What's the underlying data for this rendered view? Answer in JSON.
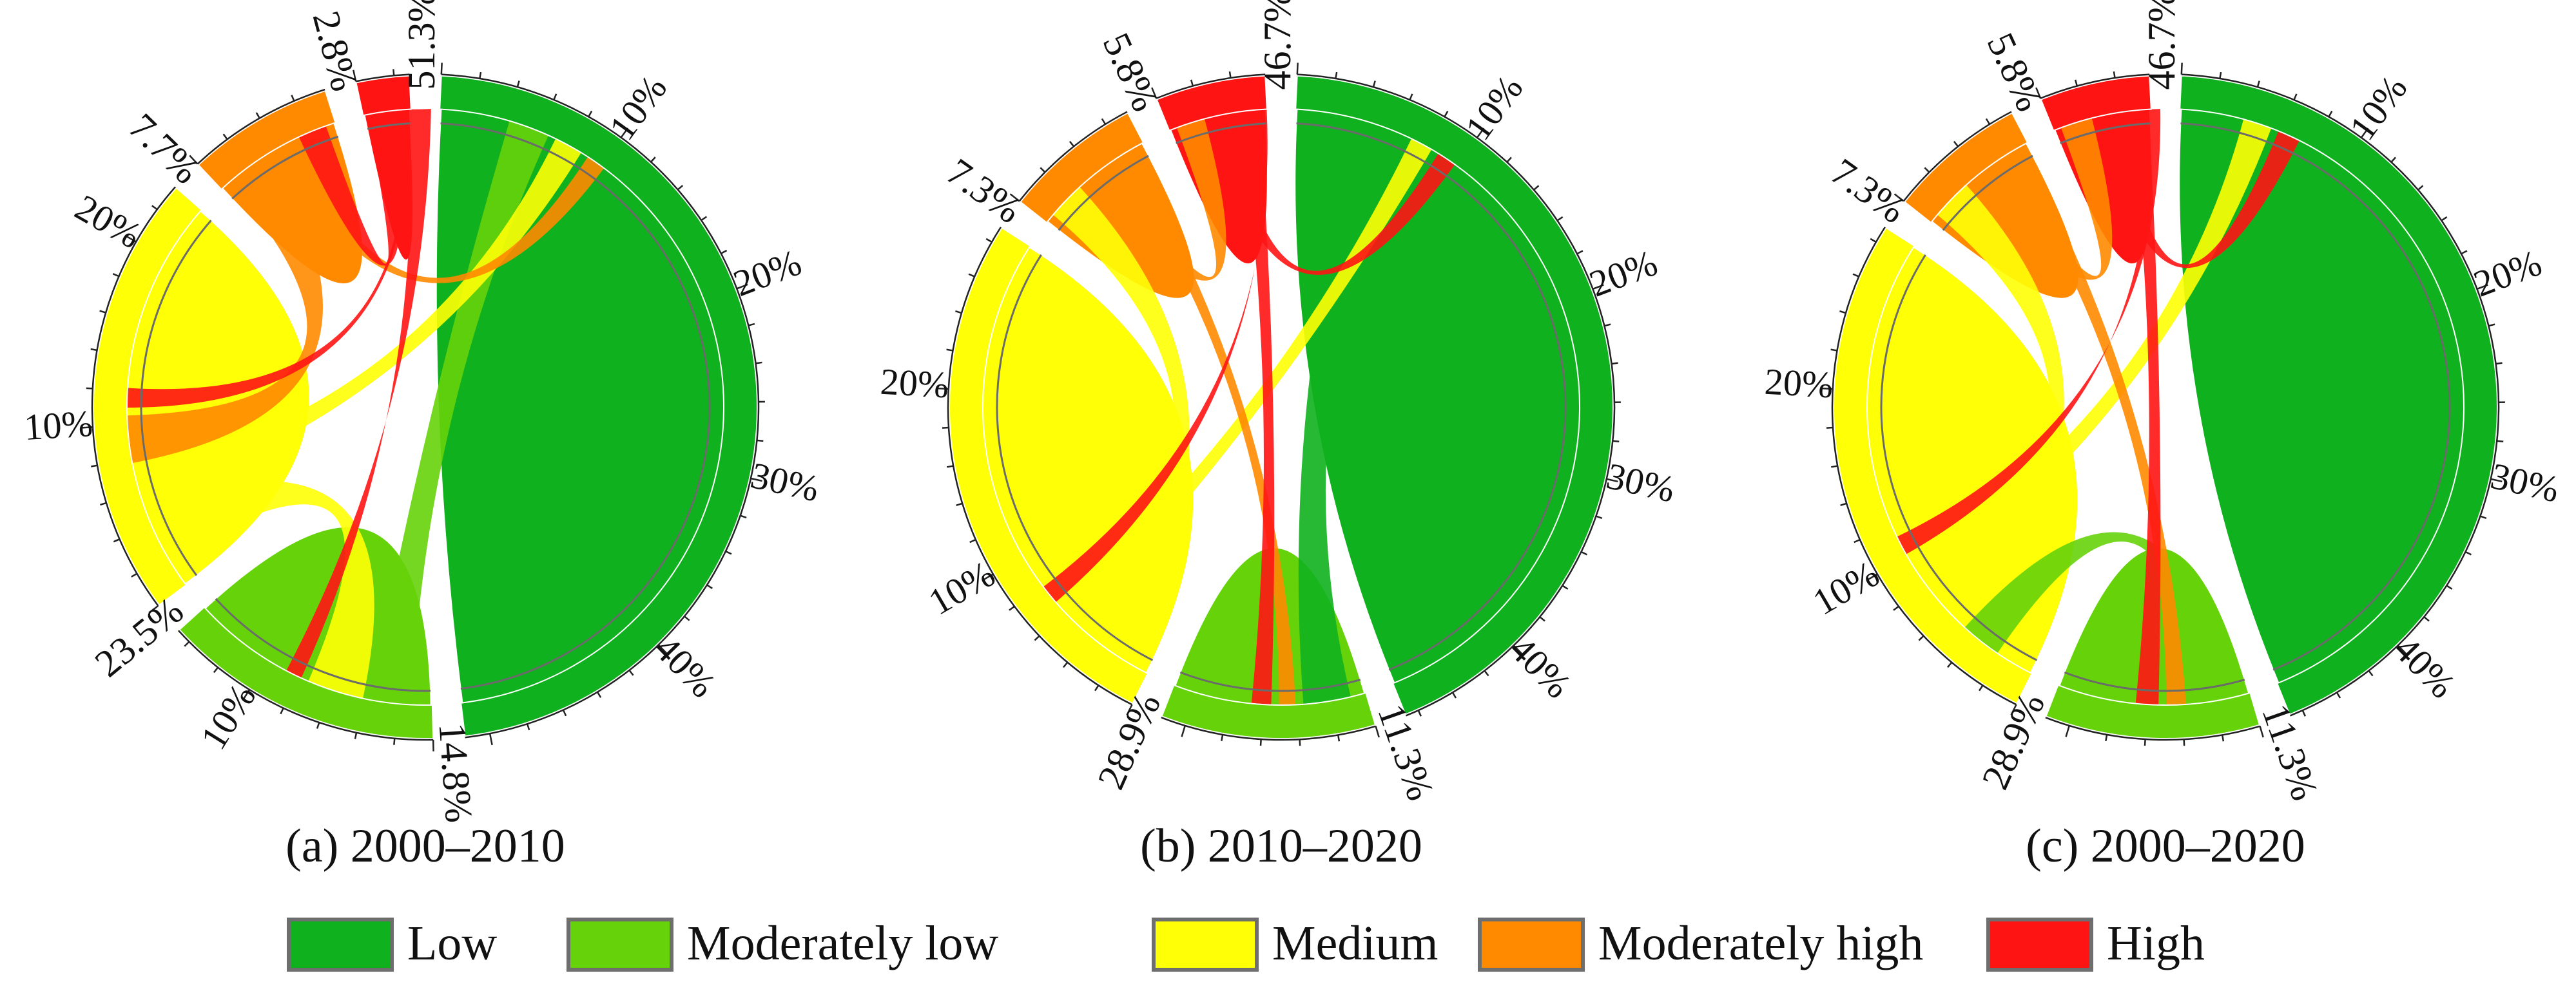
{
  "colors": {
    "Low": "#10b11e",
    "Moderately low": "#66d30a",
    "Medium": "#ffff05",
    "Moderately high": "#ff8a00",
    "High": "#ff1414"
  },
  "legend": {
    "items": [
      {
        "label": "Low",
        "color": "#10b11e"
      },
      {
        "label": "Moderately low",
        "color": "#66d30a"
      },
      {
        "label": "Medium",
        "color": "#ffff05"
      },
      {
        "label": "Moderately high",
        "color": "#ff8a00"
      },
      {
        "label": "High",
        "color": "#ff1414"
      }
    ]
  },
  "chart_data": [
    {
      "type": "chord",
      "title": "(a) 2000–2010",
      "categories": [
        "Low",
        "Moderately low",
        "Medium",
        "Moderately high",
        "High"
      ],
      "shares_percent": [
        51.3,
        14.8,
        23.5,
        7.7,
        2.8
      ],
      "share_labels": [
        "51.3%",
        "14.8%",
        "23.5%",
        "7.7%",
        "2.8%"
      ],
      "axis_tick_labels": {
        "Low": [
          "10%",
          "20%",
          "30%",
          "40%"
        ],
        "Moderately low": [
          "10%"
        ],
        "Medium": [
          "10%",
          "20%"
        ],
        "Moderately high": [],
        "High": []
      },
      "flows": [
        {
          "from": "Moderately low",
          "to": "Low",
          "value": 1.0
        },
        {
          "from": "Medium",
          "to": "Moderately low",
          "value": 1.5
        },
        {
          "from": "Medium",
          "to": "Low",
          "value": 0.6
        },
        {
          "from": "Moderately high",
          "to": "Medium",
          "value": 1.2
        },
        {
          "from": "Moderately high",
          "to": "Low",
          "value": 0.3
        },
        {
          "from": "High",
          "to": "Moderately high",
          "value": 0.6
        },
        {
          "from": "High",
          "to": "Medium",
          "value": 0.3
        },
        {
          "from": "High",
          "to": "Moderately low",
          "value": 0.2
        }
      ]
    },
    {
      "type": "chord",
      "title": "(b) 2010–2020",
      "categories": [
        "Low",
        "Moderately low",
        "Medium",
        "Moderately high",
        "High"
      ],
      "shares_percent": [
        46.7,
        11.3,
        28.9,
        7.3,
        5.8
      ],
      "share_labels": [
        "46.7%",
        "11.3%",
        "28.9%",
        "7.3%",
        "5.8%"
      ],
      "axis_tick_labels": {
        "Low": [
          "10%",
          "20%",
          "30%",
          "40%"
        ],
        "Moderately low": [],
        "Medium": [
          "10%",
          "20%"
        ],
        "Moderately high": [],
        "High": []
      },
      "flows": [
        {
          "from": "Low",
          "to": "Moderately low",
          "value": 1.2
        },
        {
          "from": "Medium",
          "to": "Moderately high",
          "value": 0.9
        },
        {
          "from": "Medium",
          "to": "Low",
          "value": 0.4
        },
        {
          "from": "Moderately high",
          "to": "High",
          "value": 0.6
        },
        {
          "from": "Moderately high",
          "to": "Moderately low",
          "value": 0.2
        },
        {
          "from": "High",
          "to": "Low",
          "value": 0.3
        },
        {
          "from": "High",
          "to": "Moderately low",
          "value": 0.3
        },
        {
          "from": "High",
          "to": "Medium",
          "value": 0.3
        }
      ]
    },
    {
      "type": "chord",
      "title": "(c) 2000–2020",
      "categories": [
        "Low",
        "Moderately low",
        "Medium",
        "Moderately high",
        "High"
      ],
      "shares_percent": [
        46.7,
        11.3,
        28.9,
        7.3,
        5.8
      ],
      "share_labels": [
        "46.7%",
        "11.3%",
        "28.9%",
        "7.3%",
        "5.8%"
      ],
      "axis_tick_labels": {
        "Low": [
          "10%",
          "20%",
          "30%",
          "40%"
        ],
        "Moderately low": [],
        "Medium": [
          "10%",
          "20%"
        ],
        "Moderately high": [],
        "High": []
      },
      "flows": [
        {
          "from": "Moderately low",
          "to": "Medium",
          "value": 1.0
        },
        {
          "from": "Medium",
          "to": "Moderately high",
          "value": 1.0
        },
        {
          "from": "Medium",
          "to": "Low",
          "value": 0.6
        },
        {
          "from": "Moderately high",
          "to": "High",
          "value": 0.7
        },
        {
          "from": "Moderately high",
          "to": "Moderately low",
          "value": 0.3
        },
        {
          "from": "High",
          "to": "Low",
          "value": 0.4
        },
        {
          "from": "High",
          "to": "Moderately low",
          "value": 0.4
        },
        {
          "from": "High",
          "to": "Medium",
          "value": 0.3
        }
      ]
    }
  ]
}
